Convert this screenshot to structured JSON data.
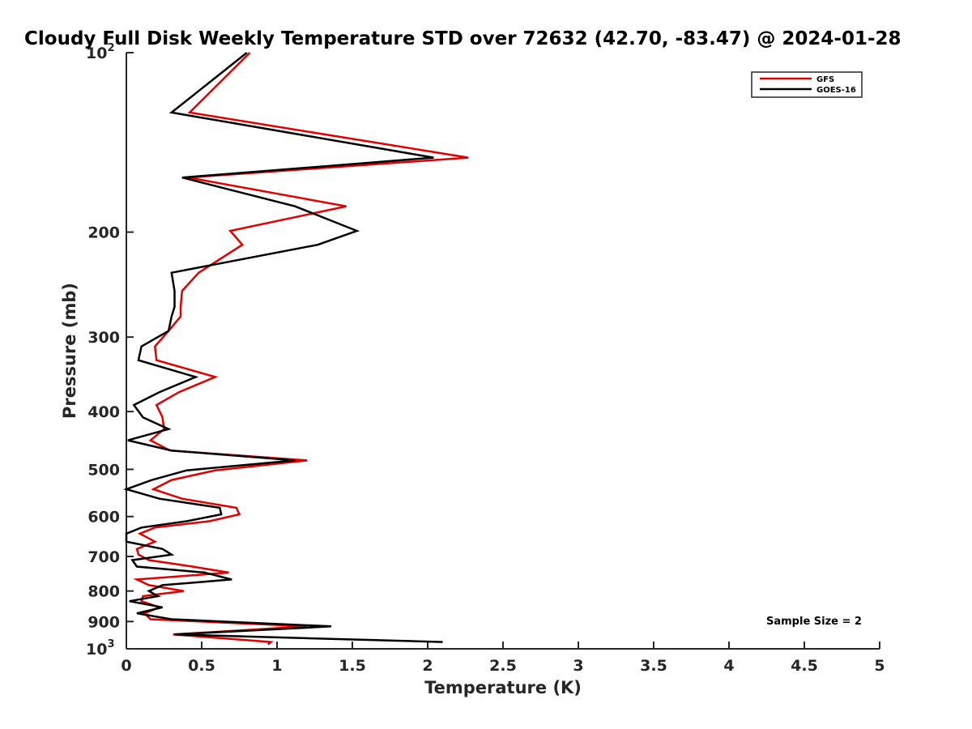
{
  "chart_data": {
    "type": "line",
    "title": "Cloudy Full Disk Weekly Temperature STD over 72632 (42.70, -83.47) @ 2024-01-28",
    "xlabel": "Temperature (K)",
    "ylabel": "Pressure (mb)",
    "xlim": [
      0,
      5
    ],
    "ylim": [
      100,
      1000
    ],
    "yscale": "log",
    "y_direction": "reversed",
    "grid": false,
    "legend_position": "top-right",
    "x_ticks": [
      "0",
      "0.5",
      "1",
      "1.5",
      "2",
      "2.5",
      "3",
      "3.5",
      "4",
      "4.5",
      "5"
    ],
    "y_ticks": [
      {
        "value": 100,
        "base": "10",
        "exp": "2"
      },
      {
        "value": 200,
        "label": "200"
      },
      {
        "value": 300,
        "label": "300"
      },
      {
        "value": 400,
        "label": "400"
      },
      {
        "value": 500,
        "label": "500"
      },
      {
        "value": 600,
        "label": "600"
      },
      {
        "value": 700,
        "label": "700"
      },
      {
        "value": 800,
        "label": "800"
      },
      {
        "value": 900,
        "label": "900"
      },
      {
        "value": 1000,
        "base": "10",
        "exp": "3"
      }
    ],
    "series": [
      {
        "name": "GFS",
        "color": "#e00000",
        "points": [
          [
            0.82,
            100
          ],
          [
            0.42,
            126
          ],
          [
            2.27,
            150
          ],
          [
            0.41,
            162
          ],
          [
            1.46,
            181
          ],
          [
            0.69,
            199
          ],
          [
            0.77,
            210
          ],
          [
            0.48,
            234
          ],
          [
            0.37,
            251
          ],
          [
            0.36,
            267
          ],
          [
            0.36,
            277
          ],
          [
            0.28,
            293
          ],
          [
            0.19,
            311
          ],
          [
            0.2,
            328
          ],
          [
            0.59,
            350
          ],
          [
            0.35,
            371
          ],
          [
            0.2,
            390
          ],
          [
            0.24,
            409
          ],
          [
            0.25,
            428
          ],
          [
            0.16,
            447
          ],
          [
            0.29,
            465
          ],
          [
            1.2,
            483
          ],
          [
            0.59,
            502
          ],
          [
            0.3,
            521
          ],
          [
            0.18,
            540
          ],
          [
            0.37,
            560
          ],
          [
            0.73,
            580
          ],
          [
            0.75,
            595
          ],
          [
            0.55,
            611
          ],
          [
            0.19,
            626
          ],
          [
            0.09,
            641
          ],
          [
            0.19,
            661
          ],
          [
            0.07,
            680
          ],
          [
            0.08,
            695
          ],
          [
            0.15,
            710
          ],
          [
            0.44,
            728
          ],
          [
            0.68,
            745
          ],
          [
            0.07,
            765
          ],
          [
            0.15,
            782
          ],
          [
            0.38,
            800
          ],
          [
            0.11,
            816
          ],
          [
            0.1,
            832
          ],
          [
            0.22,
            852
          ],
          [
            0.12,
            872
          ],
          [
            0.16,
            892
          ],
          [
            1.2,
            917
          ],
          [
            0.31,
            946
          ],
          [
            0.96,
            974
          ],
          [
            0.94,
            983
          ]
        ]
      },
      {
        "name": "GOES-16",
        "color": "#000000",
        "points": [
          [
            0.8,
            100
          ],
          [
            0.3,
            126
          ],
          [
            2.04,
            150
          ],
          [
            0.37,
            162
          ],
          [
            1.12,
            181
          ],
          [
            1.53,
            199
          ],
          [
            1.27,
            210
          ],
          [
            0.3,
            234
          ],
          [
            0.32,
            251
          ],
          [
            0.32,
            267
          ],
          [
            0.3,
            277
          ],
          [
            0.28,
            293
          ],
          [
            0.1,
            311
          ],
          [
            0.08,
            328
          ],
          [
            0.46,
            350
          ],
          [
            0.22,
            371
          ],
          [
            0.05,
            390
          ],
          [
            0.11,
            409
          ],
          [
            0.28,
            428
          ],
          [
            0.01,
            447
          ],
          [
            0.3,
            465
          ],
          [
            1.12,
            483
          ],
          [
            0.4,
            502
          ],
          [
            0.17,
            521
          ],
          [
            0.0,
            540
          ],
          [
            0.22,
            560
          ],
          [
            0.62,
            580
          ],
          [
            0.63,
            595
          ],
          [
            0.4,
            611
          ],
          [
            0.1,
            626
          ],
          [
            0.0,
            641
          ],
          [
            0.0,
            661
          ],
          [
            0.24,
            680
          ],
          [
            0.3,
            695
          ],
          [
            0.04,
            710
          ],
          [
            0.07,
            728
          ],
          [
            0.52,
            745
          ],
          [
            0.7,
            765
          ],
          [
            0.24,
            782
          ],
          [
            0.15,
            800
          ],
          [
            0.21,
            816
          ],
          [
            0.02,
            832
          ],
          [
            0.24,
            852
          ],
          [
            0.07,
            872
          ],
          [
            0.3,
            892
          ],
          [
            1.36,
            917
          ],
          [
            0.32,
            946
          ],
          [
            2.1,
            974
          ]
        ]
      }
    ],
    "annotations": [
      "Sample Size = 2"
    ]
  }
}
